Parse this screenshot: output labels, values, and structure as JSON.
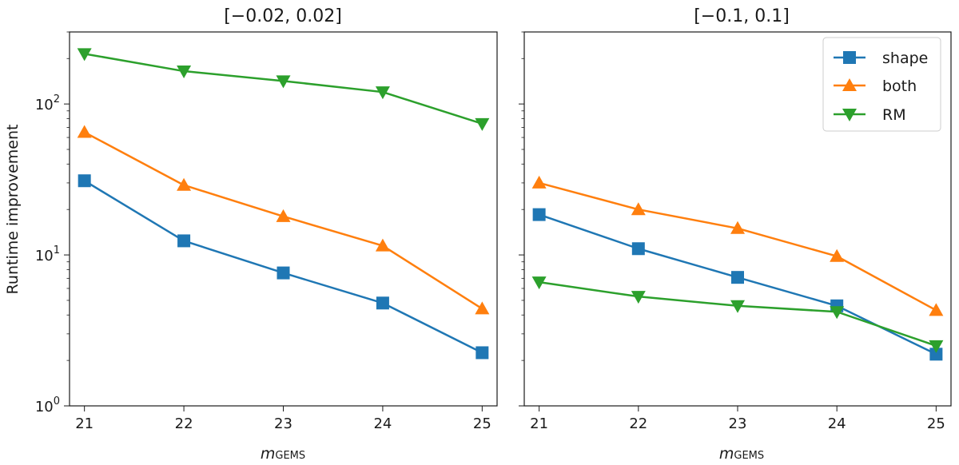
{
  "figure": {
    "ylabel": "Runtime improvement",
    "xlabel_main": "m",
    "xlabel_sub": "GEMS",
    "yscale": "log",
    "ylim": [
      1,
      300
    ]
  },
  "colors": {
    "shape": "#1f77b4",
    "both": "#ff7f0e",
    "RM": "#2ca02c"
  },
  "legend": {
    "location": "top-right",
    "entries": [
      {
        "name": "shape",
        "marker": "square"
      },
      {
        "name": "both",
        "marker": "triangle-up"
      },
      {
        "name": "RM",
        "marker": "triangle-down"
      }
    ]
  },
  "chart_data": [
    {
      "type": "line",
      "title": "[−0.02, 0.02]",
      "xlabel": "mGEMS",
      "ylabel": "Runtime improvement",
      "yscale": "log",
      "x": [
        21,
        22,
        23,
        24,
        25
      ],
      "xlim": [
        20.85,
        25.15
      ],
      "ylim": [
        1,
        300
      ],
      "series": [
        {
          "name": "shape",
          "marker": "square",
          "values": [
            31,
            12.4,
            7.6,
            4.8,
            2.25
          ]
        },
        {
          "name": "both",
          "marker": "triangle-up",
          "values": [
            65,
            29,
            18,
            11.5,
            4.4
          ]
        },
        {
          "name": "RM",
          "marker": "triangle-down",
          "values": [
            215,
            165,
            142,
            120,
            74
          ]
        }
      ]
    },
    {
      "type": "line",
      "title": "[−0.1, 0.1]",
      "xlabel": "mGEMS",
      "ylabel": "",
      "yscale": "log",
      "x": [
        21,
        22,
        23,
        24,
        25
      ],
      "xlim": [
        20.85,
        25.15
      ],
      "ylim": [
        1,
        300
      ],
      "series": [
        {
          "name": "shape",
          "marker": "square",
          "values": [
            18.5,
            11,
            7.1,
            4.6,
            2.2
          ]
        },
        {
          "name": "both",
          "marker": "triangle-up",
          "values": [
            30,
            20,
            15,
            9.8,
            4.3
          ]
        },
        {
          "name": "RM",
          "marker": "triangle-down",
          "values": [
            6.6,
            5.3,
            4.6,
            4.2,
            2.5
          ]
        }
      ]
    }
  ]
}
